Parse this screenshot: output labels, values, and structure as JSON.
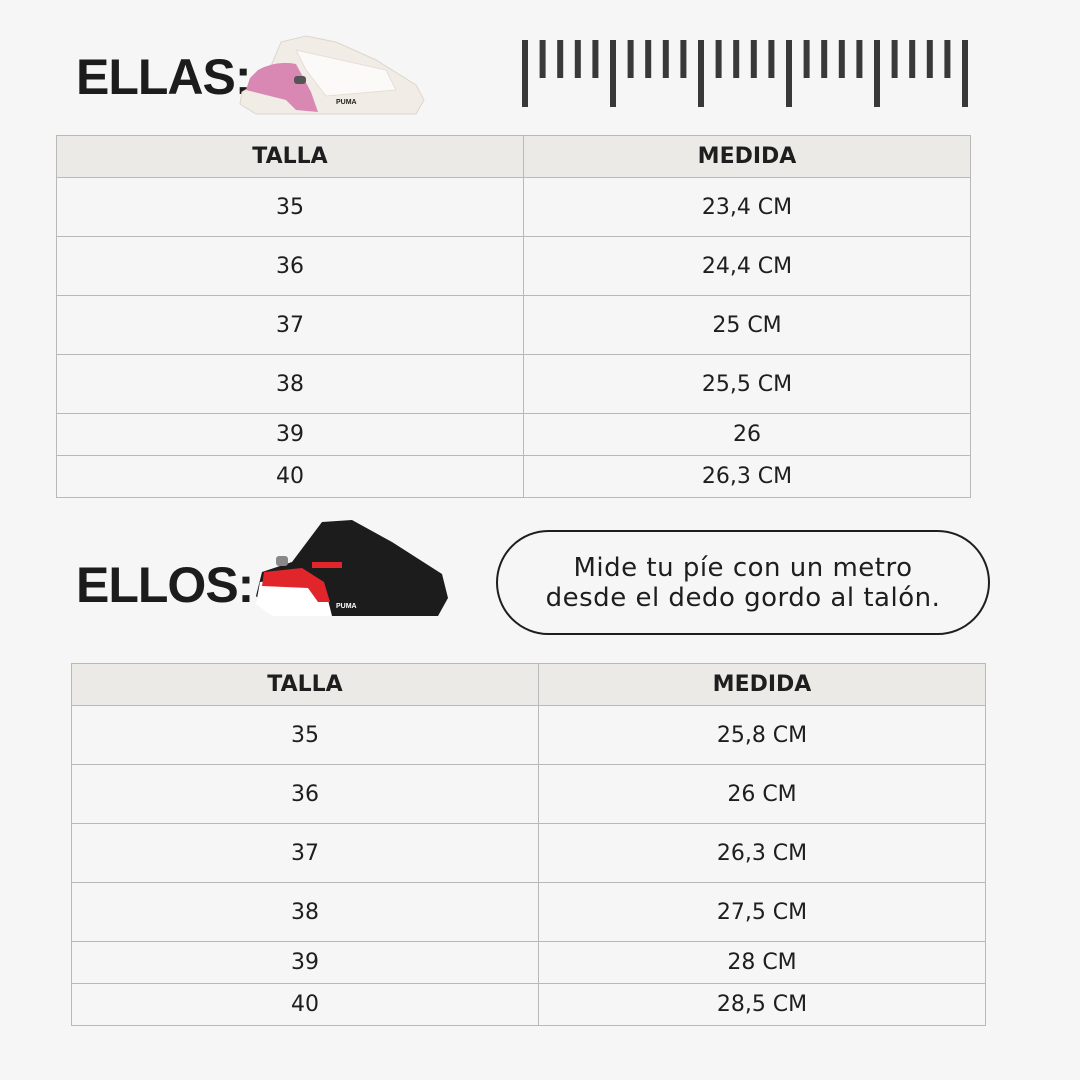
{
  "ellas": {
    "title": "ELLAS:",
    "headers": [
      "TALLA",
      "MEDIDA"
    ],
    "rows": [
      [
        "35",
        "23,4 CM"
      ],
      [
        "36",
        "24,4 CM"
      ],
      [
        "37",
        "25 CM"
      ],
      [
        "38",
        "25,5 CM"
      ],
      [
        "39",
        "26"
      ],
      [
        "40",
        "26,3 CM"
      ]
    ]
  },
  "ellos": {
    "title": "ELLOS:",
    "headers": [
      "TALLA",
      "MEDIDA"
    ],
    "rows": [
      [
        "35",
        "25,8 CM"
      ],
      [
        "36",
        "26 CM"
      ],
      [
        "37",
        "26,3 CM"
      ],
      [
        "38",
        "27,5 CM"
      ],
      [
        "39",
        "28 CM"
      ],
      [
        "40",
        "28,5 CM"
      ]
    ]
  },
  "note": {
    "line1": "Mide tu píe con un metro",
    "line2": "desde el dedo gordo al talón."
  },
  "ruler": {
    "ticks": 26,
    "major_every": 5
  },
  "colors": {
    "background": "#f6f6f6",
    "header": "#ebeae6",
    "ink": "#1e1e1e",
    "ellas_accent": "#d97fae",
    "ellos_accent": "#e0262b"
  }
}
